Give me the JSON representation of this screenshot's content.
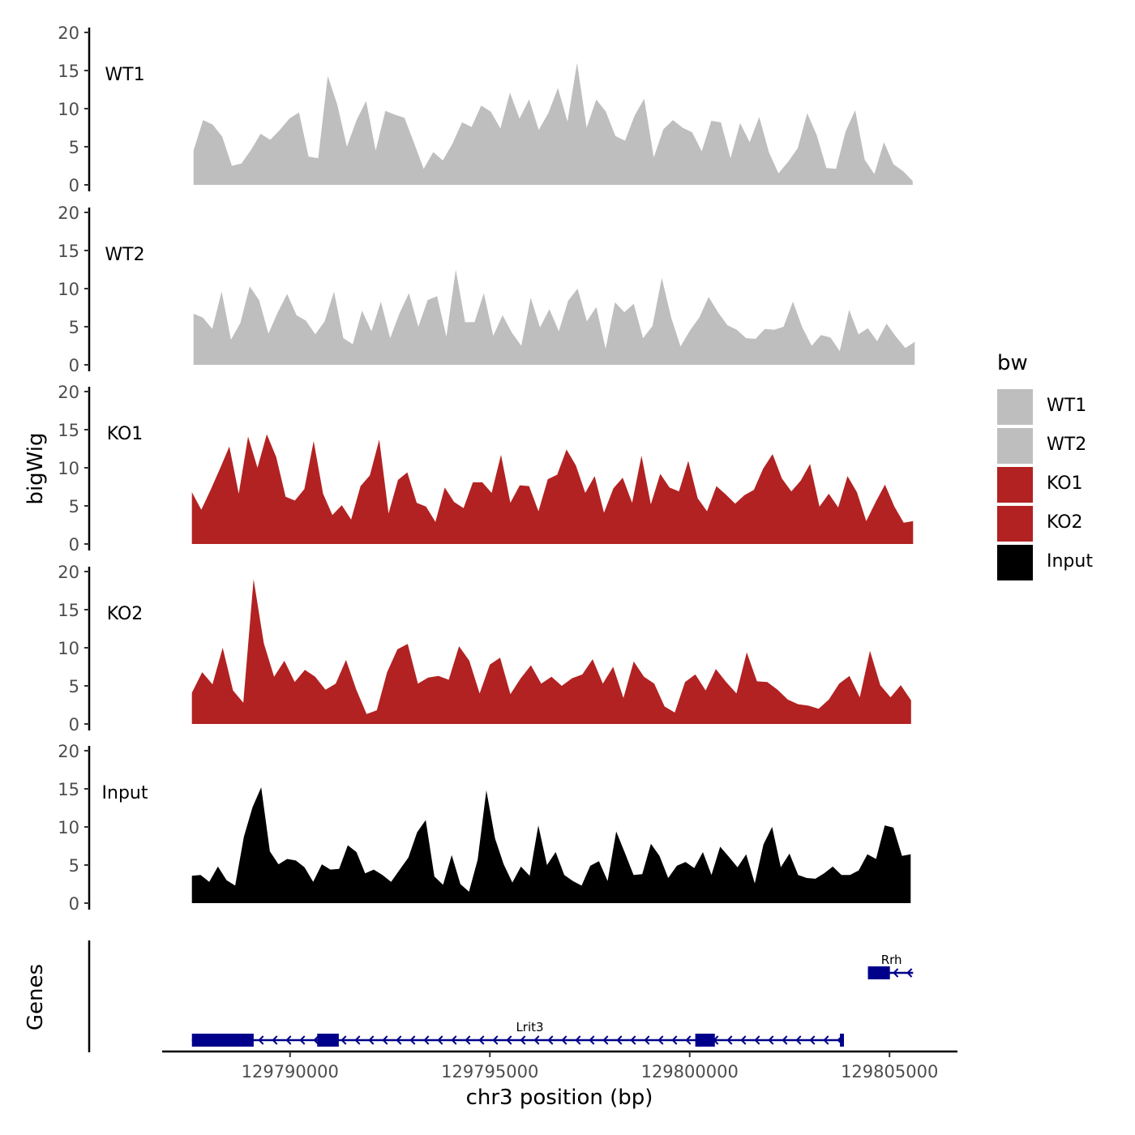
{
  "chart_data": {
    "type": "area",
    "ylabel": "bigWig",
    "xlabel": "chr3 position (bp)",
    "xlim": [
      129786800,
      129806700
    ],
    "x_ticks": [
      129790000,
      129795000,
      129800000,
      129805000
    ],
    "x_tick_labels": [
      "129790000",
      "129795000",
      "129800000",
      "129805000"
    ],
    "ylim": [
      0,
      20
    ],
    "y_ticks": [
      0,
      5,
      10,
      15,
      20
    ],
    "y_tick_labels": [
      "0",
      "5",
      "10",
      "15",
      "20"
    ],
    "legend": {
      "title": "bw",
      "position": "right",
      "entries": [
        {
          "label": "WT1",
          "color": "#bebebe"
        },
        {
          "label": "WT2",
          "color": "#bebebe"
        },
        {
          "label": "KO1",
          "color": "#b22222"
        },
        {
          "label": "KO2",
          "color": "#b22222"
        },
        {
          "label": "Input",
          "color": "#000000"
        }
      ]
    },
    "tracks": [
      {
        "name": "WT1",
        "color": "#bebebe",
        "x_start": 129787585,
        "x_end": 129805580,
        "step": 450,
        "values": [
          4.5,
          8.5,
          7.9,
          6.3,
          2.5,
          2.8,
          4.6,
          6.7,
          5.9,
          7.2,
          8.7,
          9.5,
          3.7,
          3.5,
          14.3,
          10.5,
          5.0,
          8.5,
          11.0,
          4.5,
          9.7,
          9.2,
          8.8,
          5.5,
          2.1,
          4.3,
          3.2,
          5.4,
          8.2,
          7.6,
          10.4,
          9.6,
          7.4,
          12.1,
          8.7,
          11.2,
          7.2,
          9.4,
          12.7,
          8.3,
          16.0,
          7.5,
          11.2,
          9.6,
          6.4,
          5.8,
          9.1,
          11.3,
          3.6,
          7.3,
          8.5,
          7.5,
          6.9,
          4.4,
          8.4,
          8.2,
          3.5,
          8.1,
          5.6,
          8.9,
          4.3,
          1.5,
          3.0,
          4.8,
          9.4,
          6.5,
          2.2,
          2.1,
          7.0,
          9.8,
          3.3,
          1.4,
          5.6,
          2.7,
          1.8,
          0.5
        ]
      },
      {
        "name": "WT2",
        "color": "#bebebe",
        "x_start": 129787585,
        "x_end": 129805630,
        "step": 450,
        "values": [
          6.7,
          6.2,
          4.7,
          9.6,
          3.3,
          5.5,
          10.3,
          8.5,
          4.1,
          6.9,
          9.3,
          6.5,
          5.8,
          4.0,
          5.7,
          9.6,
          3.5,
          2.7,
          7.1,
          4.4,
          8.3,
          3.5,
          6.8,
          9.4,
          5.0,
          8.5,
          9.0,
          3.7,
          12.5,
          5.6,
          5.6,
          9.4,
          3.8,
          6.5,
          4.2,
          2.5,
          8.8,
          4.9,
          7.3,
          4.4,
          8.4,
          10.0,
          5.7,
          7.6,
          2.1,
          8.2,
          6.9,
          8.0,
          3.5,
          5.1,
          11.4,
          6.2,
          2.4,
          4.5,
          6.2,
          8.9,
          6.9,
          5.2,
          4.6,
          3.5,
          3.4,
          4.7,
          4.6,
          5.0,
          8.3,
          4.9,
          2.5,
          3.9,
          3.6,
          1.8,
          7.2,
          4.0,
          4.8,
          3.1,
          5.4,
          3.7,
          2.2,
          3.0
        ]
      },
      {
        "name": "KO1",
        "color": "#b22222",
        "x_start": 129787545,
        "x_end": 129805590,
        "step": 450,
        "values": [
          6.8,
          4.5,
          7.1,
          9.9,
          12.8,
          6.6,
          14.1,
          10.0,
          14.4,
          11.4,
          6.2,
          5.7,
          7.2,
          13.5,
          6.6,
          3.8,
          5.1,
          3.2,
          7.6,
          9.0,
          13.7,
          4.0,
          8.4,
          9.4,
          5.4,
          4.9,
          2.9,
          7.4,
          5.5,
          4.7,
          8.1,
          8.1,
          6.7,
          11.7,
          5.4,
          7.7,
          7.6,
          4.3,
          8.5,
          9.1,
          12.4,
          10.3,
          6.7,
          8.9,
          4.1,
          7.3,
          8.7,
          5.4,
          11.6,
          5.2,
          9.2,
          7.4,
          6.9,
          10.9,
          6.0,
          4.3,
          7.6,
          6.5,
          5.3,
          6.4,
          7.1,
          9.9,
          11.8,
          8.6,
          6.9,
          8.3,
          10.5,
          4.9,
          6.6,
          4.8,
          8.9,
          6.8,
          3.0,
          5.5,
          7.8,
          4.9,
          2.8,
          3.0
        ]
      },
      {
        "name": "KO2",
        "color": "#b22222",
        "x_start": 129787545,
        "x_end": 129805540,
        "step": 450,
        "values": [
          4.1,
          6.8,
          5.2,
          10.0,
          4.4,
          2.8,
          19.0,
          10.6,
          6.2,
          8.3,
          5.5,
          7.1,
          6.2,
          4.5,
          5.3,
          8.4,
          4.5,
          1.3,
          1.8,
          6.8,
          9.8,
          10.5,
          5.3,
          6.1,
          6.3,
          5.8,
          10.2,
          8.3,
          4.0,
          7.8,
          8.7,
          3.9,
          6.0,
          7.7,
          5.3,
          6.2,
          5.0,
          6.0,
          6.5,
          8.5,
          5.3,
          7.5,
          3.4,
          8.2,
          6.2,
          5.3,
          2.3,
          1.5,
          5.5,
          6.5,
          4.4,
          7.2,
          5.5,
          4.0,
          9.4,
          5.6,
          5.5,
          4.5,
          3.2,
          2.6,
          2.4,
          2.0,
          3.2,
          5.3,
          6.3,
          3.5,
          9.6,
          5.1,
          3.5,
          5.1,
          3.1
        ]
      },
      {
        "name": "Input",
        "color": "#000000",
        "x_start": 129787545,
        "x_end": 129805530,
        "step": 400,
        "values": [
          3.6,
          3.7,
          2.8,
          4.8,
          3.0,
          2.3,
          8.7,
          12.6,
          15.2,
          6.8,
          5.1,
          5.8,
          5.6,
          4.7,
          2.8,
          5.1,
          4.4,
          4.5,
          7.6,
          6.7,
          3.9,
          4.4,
          3.7,
          2.8,
          4.4,
          6.0,
          9.3,
          10.9,
          3.5,
          2.4,
          6.3,
          2.5,
          1.5,
          5.7,
          14.8,
          8.5,
          5.1,
          2.7,
          4.8,
          3.6,
          10.2,
          5.0,
          6.7,
          3.7,
          2.9,
          2.3,
          4.9,
          5.5,
          2.9,
          9.4,
          6.6,
          3.7,
          3.8,
          7.8,
          6.2,
          3.3,
          4.9,
          5.4,
          4.6,
          6.7,
          3.7,
          7.4,
          6.1,
          4.7,
          6.4,
          2.6,
          7.7,
          10.0,
          4.7,
          6.5,
          3.7,
          3.3,
          3.2,
          3.9,
          4.8,
          3.7,
          3.7,
          4.3,
          6.4,
          5.8,
          10.2,
          9.9,
          6.2,
          6.4
        ]
      }
    ],
    "genes_track": {
      "label": "Genes",
      "genes": [
        {
          "name": "Lrit3",
          "strand": "-",
          "start": 129787545,
          "end": 129803860,
          "exons": [
            [
              129787545,
              129789090
            ],
            [
              129790680,
              129791220
            ],
            [
              129800140,
              129800630
            ],
            [
              129803760,
              129803860
            ]
          ]
        },
        {
          "name": "Rrh",
          "strand": "-",
          "start": 129804460,
          "end": 129805590,
          "exons": [
            [
              129804460,
              129805010
            ]
          ]
        }
      ]
    }
  }
}
